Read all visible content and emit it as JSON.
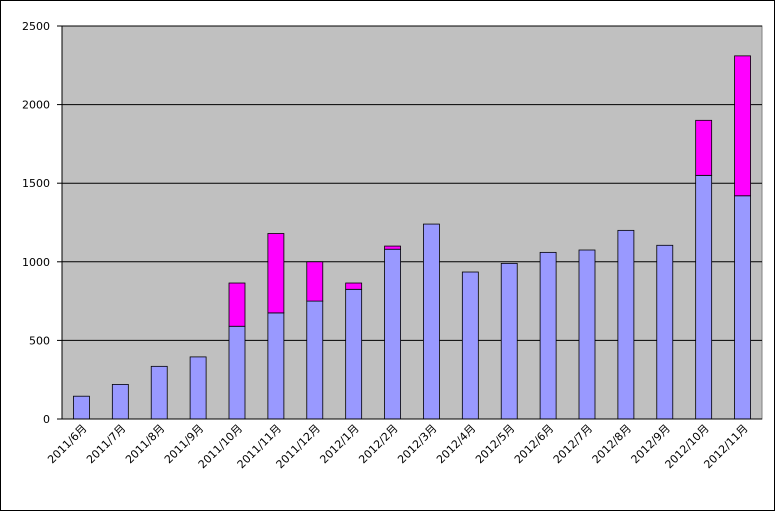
{
  "chart_data": {
    "type": "stacked-bar",
    "categories": [
      "2011/6月",
      "2011/7月",
      "2011/8月",
      "2011/9月",
      "2011/10月",
      "2011/11月",
      "2011/12月",
      "2012/1月",
      "2012/2月",
      "2012/3月",
      "2012/4月",
      "2012/5月",
      "2012/6月",
      "2012/7月",
      "2012/8月",
      "2012/9月",
      "2012/10月",
      "2012/11月"
    ],
    "series": [
      {
        "color": "#9999ff",
        "values": [
          145,
          220,
          335,
          395,
          590,
          675,
          750,
          825,
          1080,
          1240,
          935,
          990,
          1060,
          1075,
          1200,
          1105,
          1550,
          1420
        ]
      },
      {
        "color": "#ff00ff",
        "values": [
          null,
          null,
          null,
          null,
          275,
          505,
          250,
          40,
          20,
          null,
          null,
          null,
          null,
          null,
          null,
          null,
          350,
          890
        ]
      }
    ],
    "ylim": [
      0,
      2500
    ],
    "yticks": [
      0,
      500,
      1000,
      1500,
      2000,
      2500
    ],
    "grid": true
  }
}
